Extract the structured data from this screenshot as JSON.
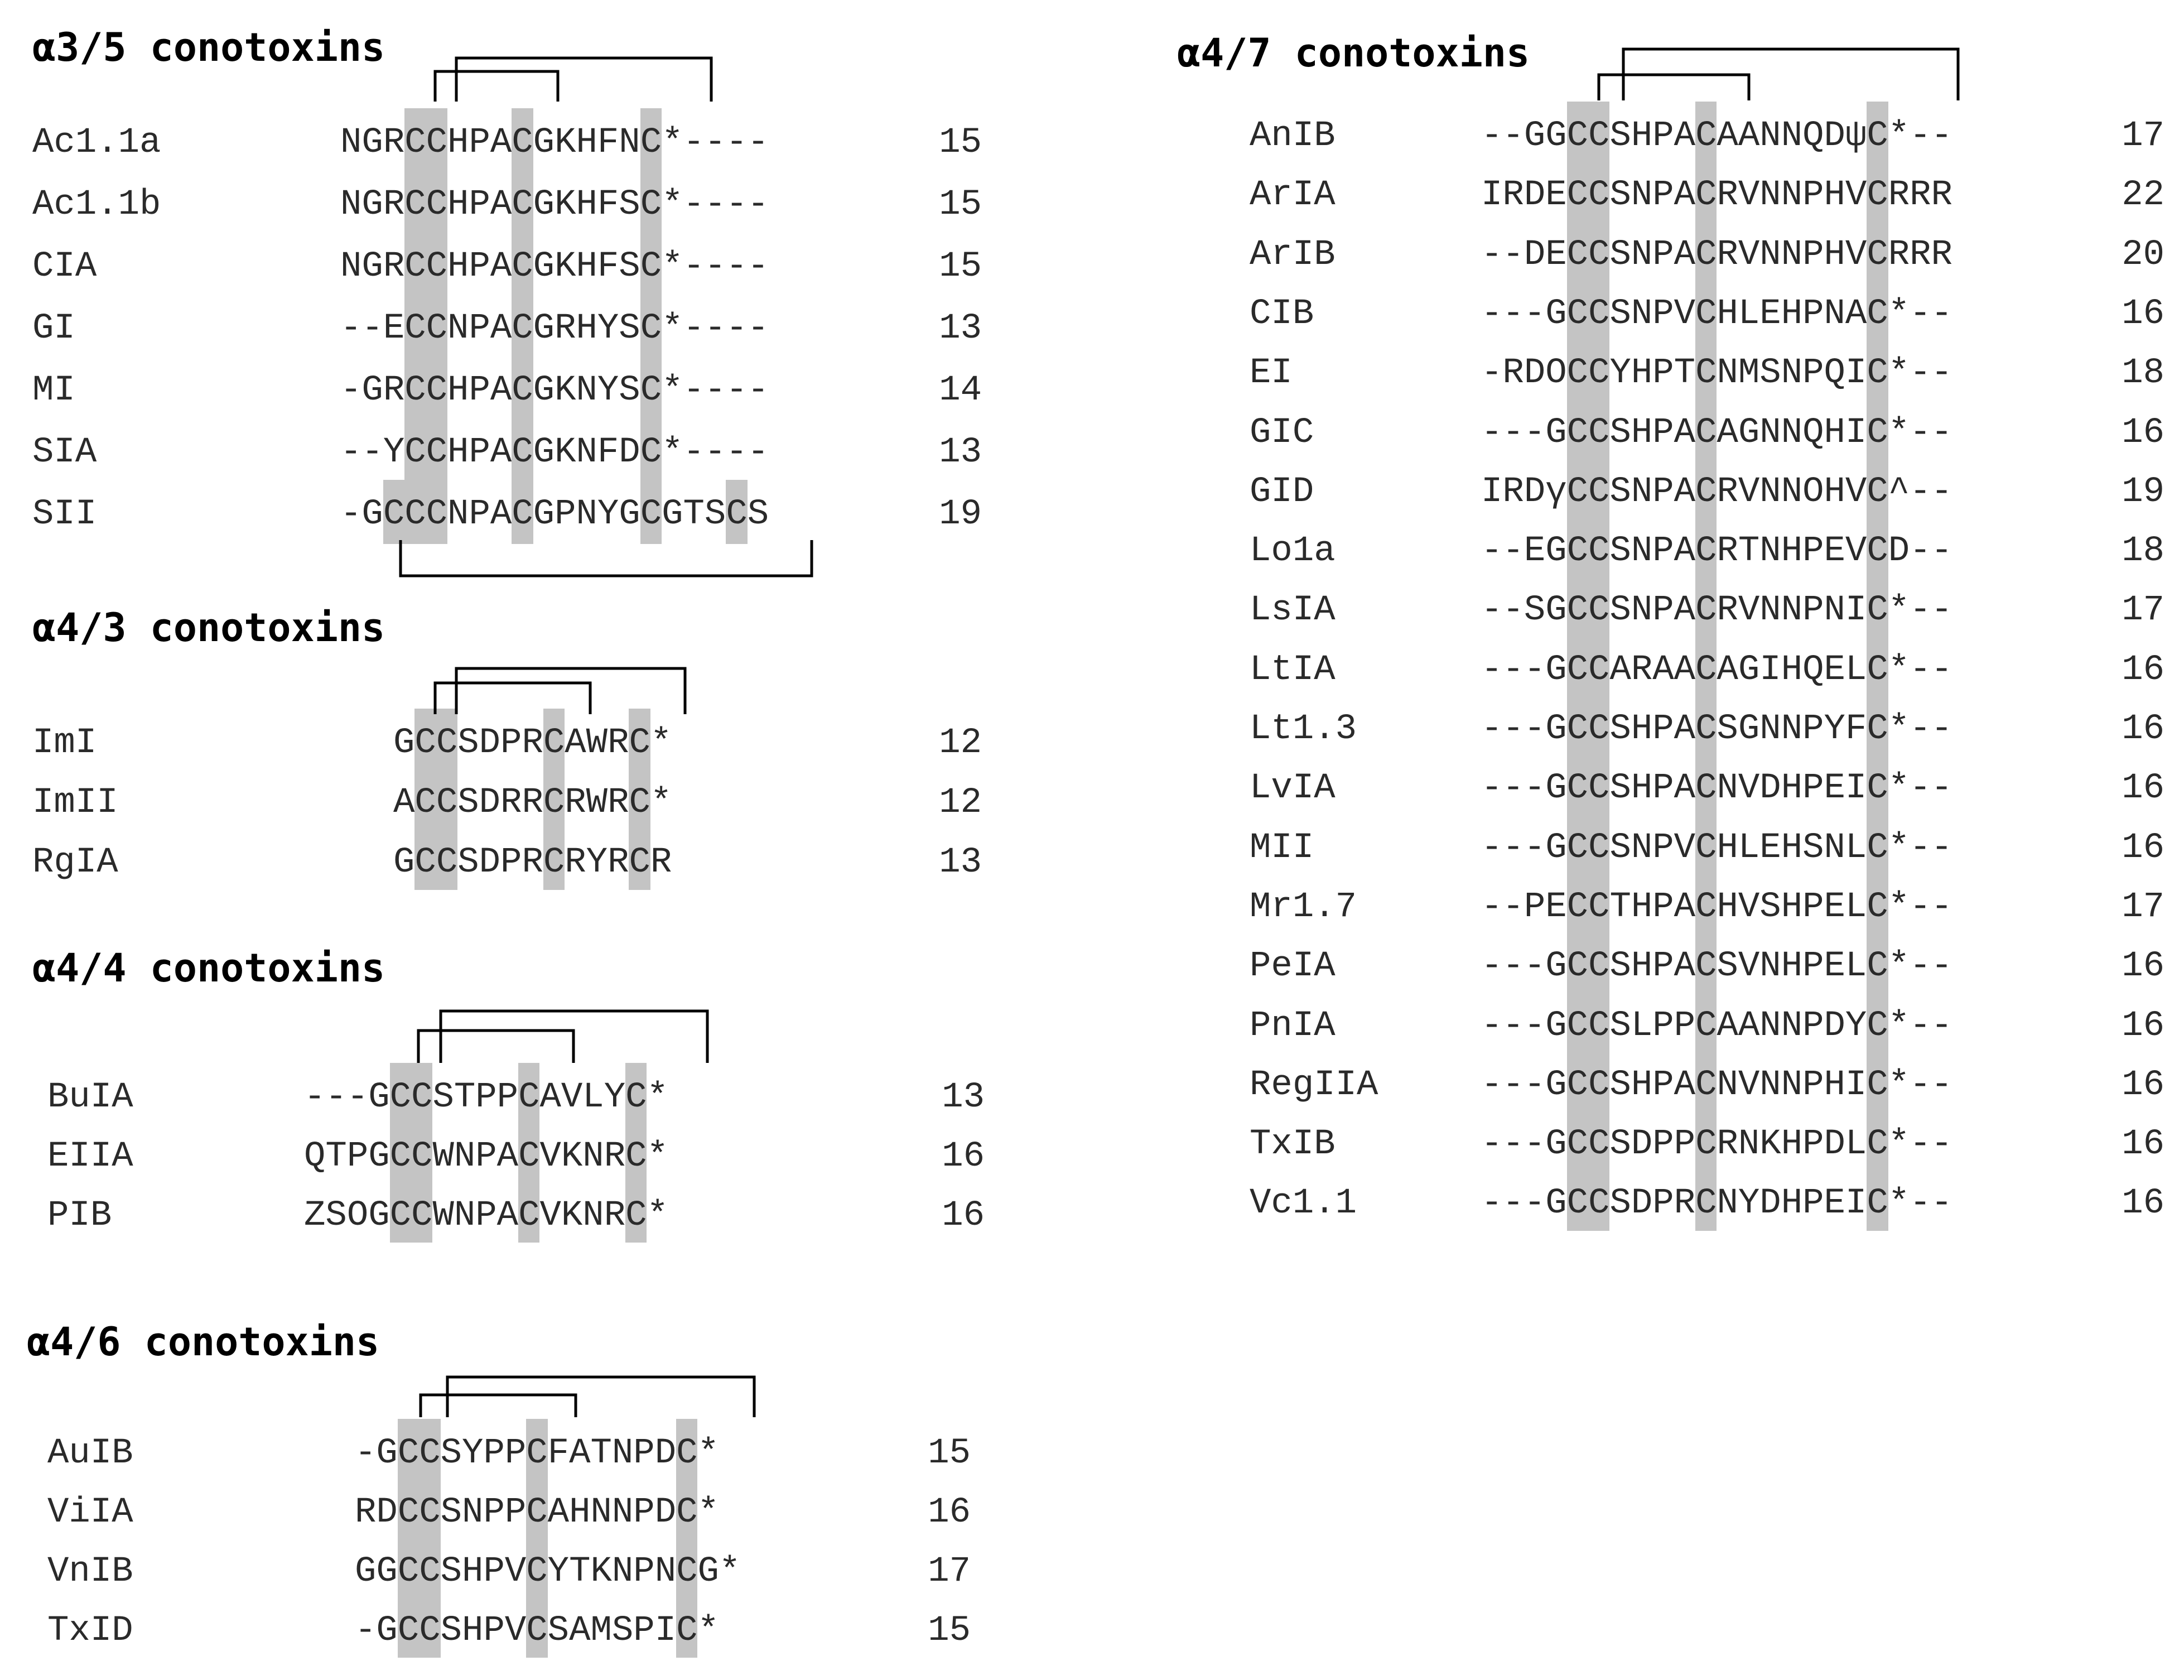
{
  "groups": [
    {
      "title": "α3/5 conotoxins",
      "rows": [
        {
          "name": "Ac1.1a",
          "seq": "NGRCCHPACGKHFNC*----",
          "len": "15"
        },
        {
          "name": "Ac1.1b",
          "seq": "NGRCCHPACGKHFSC*----",
          "len": "15"
        },
        {
          "name": "CIA",
          "seq": "NGRCCHPACGKHFSC*----",
          "len": "15"
        },
        {
          "name": "GI",
          "seq": "--ECCNPACGRHYSC*----",
          "len": "13"
        },
        {
          "name": "MI",
          "seq": "-GRCCHPACGKNYSC*----",
          "len": "14"
        },
        {
          "name": "SIA",
          "seq": "--YCCHPACGKNFDC*----",
          "len": "13"
        },
        {
          "name": "SII",
          "seq": "-GCCCNPACGPNYGCGTSCS",
          "len": "19"
        }
      ],
      "shaded_columns": [
        3,
        4,
        8,
        14
      ],
      "extra_shaded": [
        {
          "row": 6,
          "cols": [
            2,
            18
          ]
        }
      ]
    },
    {
      "title": "α4/3 conotoxins",
      "rows": [
        {
          "name": "ImI",
          "seq": "GCCSDPRCAWRC*",
          "len": "12"
        },
        {
          "name": "ImII",
          "seq": "ACCSDRRCRWRC*",
          "len": "12"
        },
        {
          "name": "RgIA",
          "seq": "GCCSDPRCRYRCR",
          "len": "13"
        }
      ],
      "shaded_columns": [
        1,
        2,
        7,
        11
      ]
    },
    {
      "title": "α4/4 conotoxins",
      "rows": [
        {
          "name": "BuIA",
          "seq": "---GCCSTPPCAVLYC*",
          "len": "13"
        },
        {
          "name": "EIIA",
          "seq": "QTPGCCWNPACVKNRC*",
          "len": "16"
        },
        {
          "name": "PIB",
          "seq": "ZSOGCCWNPACVKNRC*",
          "len": "16"
        }
      ],
      "shaded_columns": [
        4,
        5,
        10,
        15
      ]
    },
    {
      "title": "α4/6 conotoxins",
      "rows": [
        {
          "name": "AuIB",
          "seq": "-GCCSYPPCFATNPDC*",
          "len": "15"
        },
        {
          "name": "ViIA",
          "seq": "RDCCSNPPCAHNNPDC*",
          "len": "16"
        },
        {
          "name": "VnIB",
          "seq": "GGCCSHPVCYTKNPNCG*",
          "len": "17"
        },
        {
          "name": "TxID",
          "seq": "-GCCSHPVCSAMSPIC*",
          "len": "15"
        }
      ],
      "shaded_columns": [
        2,
        3,
        8,
        15
      ]
    },
    {
      "title": "α4/7 conotoxins",
      "rows": [
        {
          "name": "AnIB",
          "seq": "--GGCCSHPACAANNQDψC*--",
          "len": "17"
        },
        {
          "name": "ArIA",
          "seq": "IRDECCSNPACRVNNPHVCRRR",
          "len": "22"
        },
        {
          "name": "ArIB",
          "seq": "--DECCSNPACRVNNPHVCRRR",
          "len": "20"
        },
        {
          "name": "CIB",
          "seq": "---GCCSNPVCHLEHPNAC*--",
          "len": "16"
        },
        {
          "name": "EI",
          "seq": "-RDOCCYHPTCNMSNPQIC*--",
          "len": "18"
        },
        {
          "name": "GIC",
          "seq": "---GCCSHPACAGNNQHIC*--",
          "len": "16"
        },
        {
          "name": "GID",
          "seq": "IRDγCCSNPACRVNNOHVC^--",
          "len": "19"
        },
        {
          "name": "Lo1a",
          "seq": "--EGCCSNPACRTNHPEVCD--",
          "len": "18"
        },
        {
          "name": "LsIA",
          "seq": "--SGCCSNPACRVNNPNIC*--",
          "len": "17"
        },
        {
          "name": "LtIA",
          "seq": "---GCCARAACAGIHQELC*--",
          "len": "16"
        },
        {
          "name": "Lt1.3",
          "seq": "---GCCSHPACSGNNPYFC*--",
          "len": "16"
        },
        {
          "name": "LvIA",
          "seq": "---GCCSHPACNVDHPEIC*--",
          "len": "16"
        },
        {
          "name": "MII",
          "seq": "---GCCSNPVCHLEHSNLC*--",
          "len": "16"
        },
        {
          "name": "Mr1.7",
          "seq": "--PECCTHPACHVSHPELC*--",
          "len": "17"
        },
        {
          "name": "PeIA",
          "seq": "---GCCSHPACSVNHPELC*--",
          "len": "16"
        },
        {
          "name": "PnIA",
          "seq": "---GCCSLPPCAANNPDYC*--",
          "len": "16"
        },
        {
          "name": "RegIIA",
          "seq": "---GCCSHPACNVNNPHIC*--",
          "len": "16"
        },
        {
          "name": "TxIB",
          "seq": "---GCCSDPPCRNKHPDLC*--",
          "len": "16"
        },
        {
          "name": "Vc1.1",
          "seq": "---GCCSDPRCNYDHPEIC*--",
          "len": "16"
        }
      ],
      "shaded_columns": [
        4,
        5,
        10,
        18
      ]
    }
  ]
}
